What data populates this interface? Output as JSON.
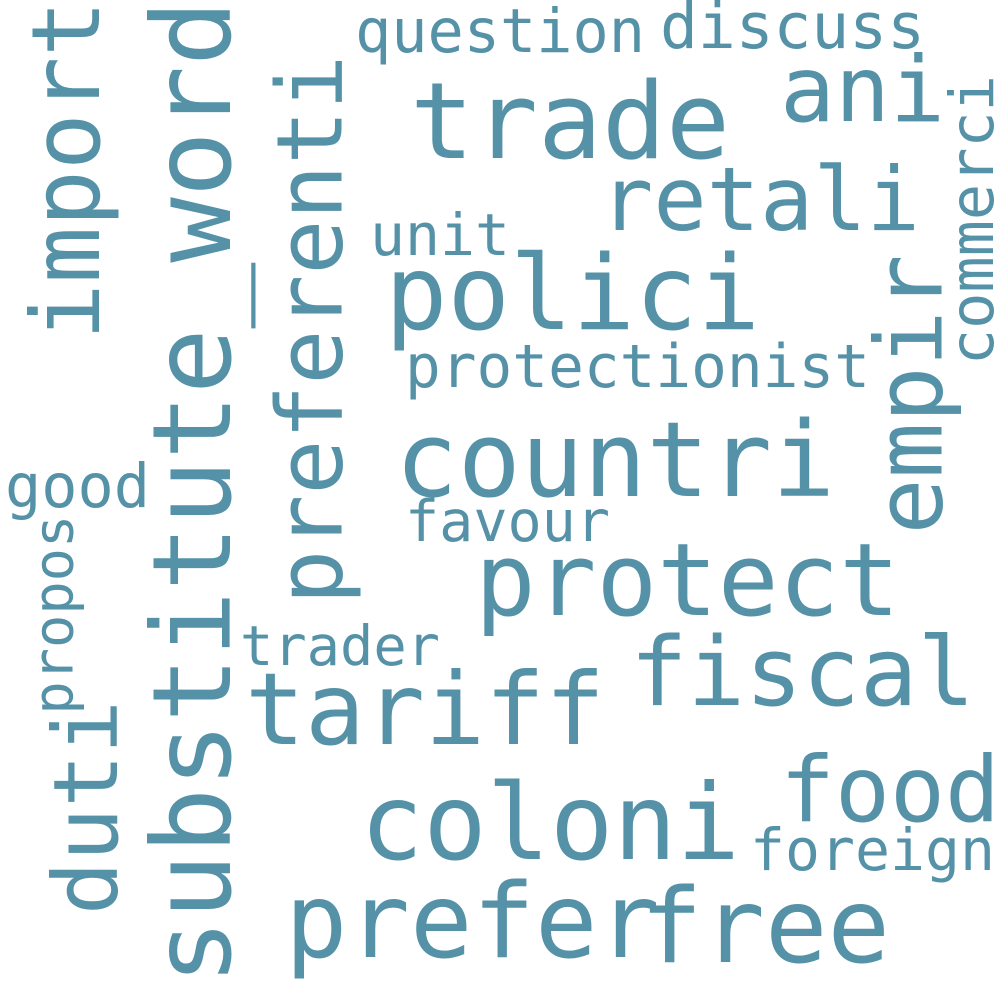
{
  "colors": {
    "background": "#ffffff",
    "word": "#5592a8"
  },
  "words": [
    {
      "id": "substitute_word",
      "text": "substitute_word",
      "orientation": "vertical"
    },
    {
      "id": "trade",
      "text": "trade",
      "orientation": "horizontal"
    },
    {
      "id": "polici",
      "text": "polici",
      "orientation": "horizontal"
    },
    {
      "id": "countri",
      "text": "countri",
      "orientation": "horizontal"
    },
    {
      "id": "protect",
      "text": "protect",
      "orientation": "horizontal"
    },
    {
      "id": "tariff",
      "text": "tariff",
      "orientation": "horizontal"
    },
    {
      "id": "coloni",
      "text": "coloni",
      "orientation": "horizontal"
    },
    {
      "id": "prefer",
      "text": "prefer",
      "orientation": "horizontal"
    },
    {
      "id": "free",
      "text": "free",
      "orientation": "horizontal"
    },
    {
      "id": "preferenti",
      "text": "preferenti",
      "orientation": "vertical"
    },
    {
      "id": "import",
      "text": "import",
      "orientation": "vertical"
    },
    {
      "id": "fiscal",
      "text": "fiscal",
      "orientation": "horizontal"
    },
    {
      "id": "food",
      "text": "food",
      "orientation": "horizontal"
    },
    {
      "id": "empir",
      "text": "empir",
      "orientation": "vertical"
    },
    {
      "id": "retali",
      "text": "retali",
      "orientation": "horizontal"
    },
    {
      "id": "ani",
      "text": "ani",
      "orientation": "horizontal"
    },
    {
      "id": "duti",
      "text": "duti",
      "orientation": "vertical"
    },
    {
      "id": "question",
      "text": "question",
      "orientation": "horizontal"
    },
    {
      "id": "discuss",
      "text": "discuss",
      "orientation": "horizontal"
    },
    {
      "id": "unit",
      "text": "unit",
      "orientation": "horizontal"
    },
    {
      "id": "protectionist",
      "text": "protectionist",
      "orientation": "horizontal"
    },
    {
      "id": "commerci",
      "text": "commerci",
      "orientation": "vertical"
    },
    {
      "id": "good",
      "text": "good",
      "orientation": "horizontal"
    },
    {
      "id": "favour",
      "text": "favour",
      "orientation": "horizontal"
    },
    {
      "id": "propos",
      "text": "propos",
      "orientation": "vertical"
    },
    {
      "id": "trader",
      "text": "trader",
      "orientation": "horizontal"
    },
    {
      "id": "foreign",
      "text": "foreign",
      "orientation": "horizontal"
    }
  ]
}
